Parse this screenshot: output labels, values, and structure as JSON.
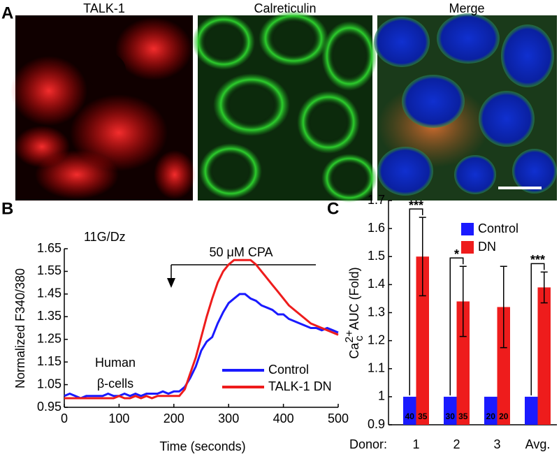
{
  "panel_labels": [
    "A",
    "B",
    "C"
  ],
  "images": [
    {
      "title": "TALK-1",
      "color": "#ff2020"
    },
    {
      "title": "Calreticulin",
      "color": "#20e020"
    },
    {
      "title": "Merge",
      "color": "#000000"
    }
  ],
  "chart_data": [
    {
      "type": "line",
      "xlabel": "Time (seconds)",
      "ylabel": "Normalized F340/380",
      "annotations": [
        "11G/Dz",
        "50 μM CPA",
        "Human",
        "β-cells"
      ],
      "x": [
        0,
        10,
        20,
        30,
        40,
        50,
        60,
        70,
        80,
        90,
        100,
        110,
        120,
        130,
        140,
        150,
        160,
        170,
        180,
        190,
        200,
        210,
        220,
        230,
        240,
        250,
        260,
        270,
        280,
        290,
        300,
        310,
        320,
        330,
        340,
        350,
        360,
        370,
        380,
        390,
        400,
        410,
        420,
        430,
        440,
        450,
        460,
        470,
        480,
        490,
        500
      ],
      "series": [
        {
          "name": "Control",
          "color": "#1a1aff",
          "values": [
            1.0,
            1.01,
            1.0,
            0.99,
            1.0,
            1.0,
            1.0,
            1.0,
            1.01,
            1.0,
            1.0,
            1.01,
            1.0,
            1.01,
            1.0,
            1.01,
            1.01,
            1.01,
            1.02,
            1.01,
            1.02,
            1.02,
            1.04,
            1.08,
            1.13,
            1.2,
            1.24,
            1.26,
            1.32,
            1.37,
            1.41,
            1.43,
            1.45,
            1.45,
            1.43,
            1.42,
            1.4,
            1.39,
            1.38,
            1.36,
            1.36,
            1.34,
            1.33,
            1.32,
            1.31,
            1.3,
            1.3,
            1.29,
            1.3,
            1.29,
            1.28
          ]
        },
        {
          "name": "TALK-1 DN",
          "color": "#ee1c1c",
          "values": [
            0.99,
            0.99,
            0.99,
            0.99,
            0.99,
            0.99,
            0.99,
            0.99,
            0.99,
            0.99,
            1.0,
            0.99,
            0.99,
            1.0,
            0.99,
            1.0,
            0.99,
            1.0,
            1.0,
            1.0,
            1.0,
            1.0,
            1.03,
            1.1,
            1.17,
            1.26,
            1.35,
            1.43,
            1.5,
            1.55,
            1.58,
            1.6,
            1.6,
            1.6,
            1.6,
            1.58,
            1.55,
            1.52,
            1.49,
            1.46,
            1.43,
            1.4,
            1.38,
            1.36,
            1.34,
            1.32,
            1.31,
            1.3,
            1.29,
            1.28,
            1.27
          ]
        }
      ],
      "xlim": [
        0,
        500
      ],
      "xticks": [
        0,
        100,
        200,
        300,
        400,
        500
      ],
      "ylim": [
        0.95,
        1.65
      ],
      "yticks": [
        0.95,
        1.05,
        1.15,
        1.25,
        1.35,
        1.45,
        1.55,
        1.65
      ]
    },
    {
      "type": "bar",
      "xlabel": "Donor:",
      "ylabel": {
        "base": "Ca",
        "sup": "2+",
        "sub": "c",
        "rest": "AUC (Fold)"
      },
      "categories": [
        "1",
        "2",
        "3",
        "Avg."
      ],
      "series": [
        {
          "name": "Control",
          "color": "#1a1aff",
          "values": [
            1,
            1,
            1,
            1
          ],
          "n_labels": [
            40,
            30,
            20,
            null
          ]
        },
        {
          "name": "DN",
          "color": "#ee1c1c",
          "values": [
            1.5,
            1.34,
            1.32,
            1.39
          ],
          "errors": [
            0.14,
            0.125,
            0.145,
            0.055
          ],
          "n_labels": [
            35,
            35,
            20,
            null
          ]
        }
      ],
      "significance": [
        "***",
        "*",
        null,
        "***"
      ],
      "ylim": [
        0.9,
        1.7
      ],
      "yticks": [
        0.9,
        1,
        1.1,
        1.2,
        1.3,
        1.4,
        1.5,
        1.6,
        1.7
      ]
    }
  ]
}
